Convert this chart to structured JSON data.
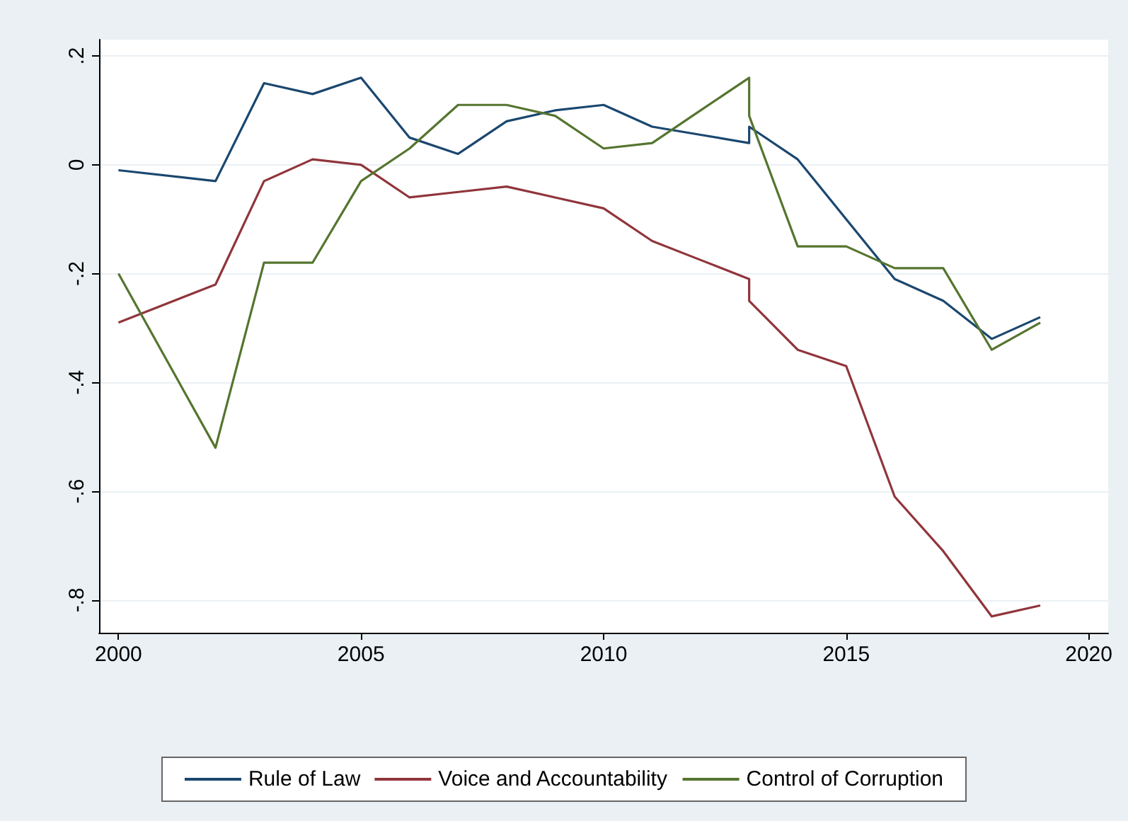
{
  "chart_data": {
    "type": "line",
    "x": [
      2000,
      2002,
      2003,
      2004,
      2005,
      2006,
      2007,
      2008,
      2009,
      2010,
      2011,
      2012,
      2013,
      2013,
      2014,
      2015,
      2016,
      2017,
      2018,
      2019
    ],
    "series": [
      {
        "name": "Rule of Law",
        "color": "#1a476f",
        "values": [
          -0.01,
          -0.03,
          0.15,
          0.13,
          0.16,
          0.05,
          0.02,
          0.08,
          0.1,
          0.11,
          0.07,
          0.055,
          0.04,
          0.07,
          0.01,
          -0.1,
          -0.21,
          -0.25,
          -0.32,
          -0.28
        ]
      },
      {
        "name": "Voice and Accountability",
        "color": "#90353b",
        "values": [
          -0.29,
          -0.22,
          -0.03,
          0.01,
          0.0,
          -0.06,
          -0.05,
          -0.04,
          -0.06,
          -0.08,
          -0.14,
          -0.175,
          -0.21,
          -0.25,
          -0.34,
          -0.37,
          -0.61,
          -0.71,
          -0.83,
          -0.81
        ]
      },
      {
        "name": "Control of Corruption",
        "color": "#55752f",
        "values": [
          -0.2,
          -0.52,
          -0.18,
          -0.18,
          -0.03,
          0.03,
          0.11,
          0.11,
          0.09,
          0.03,
          0.04,
          0.1,
          0.16,
          0.09,
          -0.15,
          -0.15,
          -0.19,
          -0.19,
          -0.34,
          -0.29
        ]
      }
    ],
    "xlim": [
      1999.6,
      2020.4
    ],
    "xticks": [
      2000,
      2005,
      2010,
      2015,
      2020
    ],
    "ylim": [
      -0.86,
      0.23
    ],
    "yticks": [
      {
        "value": -0.8,
        "label": "-.8"
      },
      {
        "value": -0.6,
        "label": "-.6"
      },
      {
        "value": -0.4,
        "label": "-.4"
      },
      {
        "value": -0.2,
        "label": "-.2"
      },
      {
        "value": 0,
        "label": "0"
      },
      {
        "value": 0.2,
        "label": ".2"
      }
    ],
    "grid": "y",
    "legend": "bottom",
    "marker": "none",
    "line_style": "solid"
  }
}
